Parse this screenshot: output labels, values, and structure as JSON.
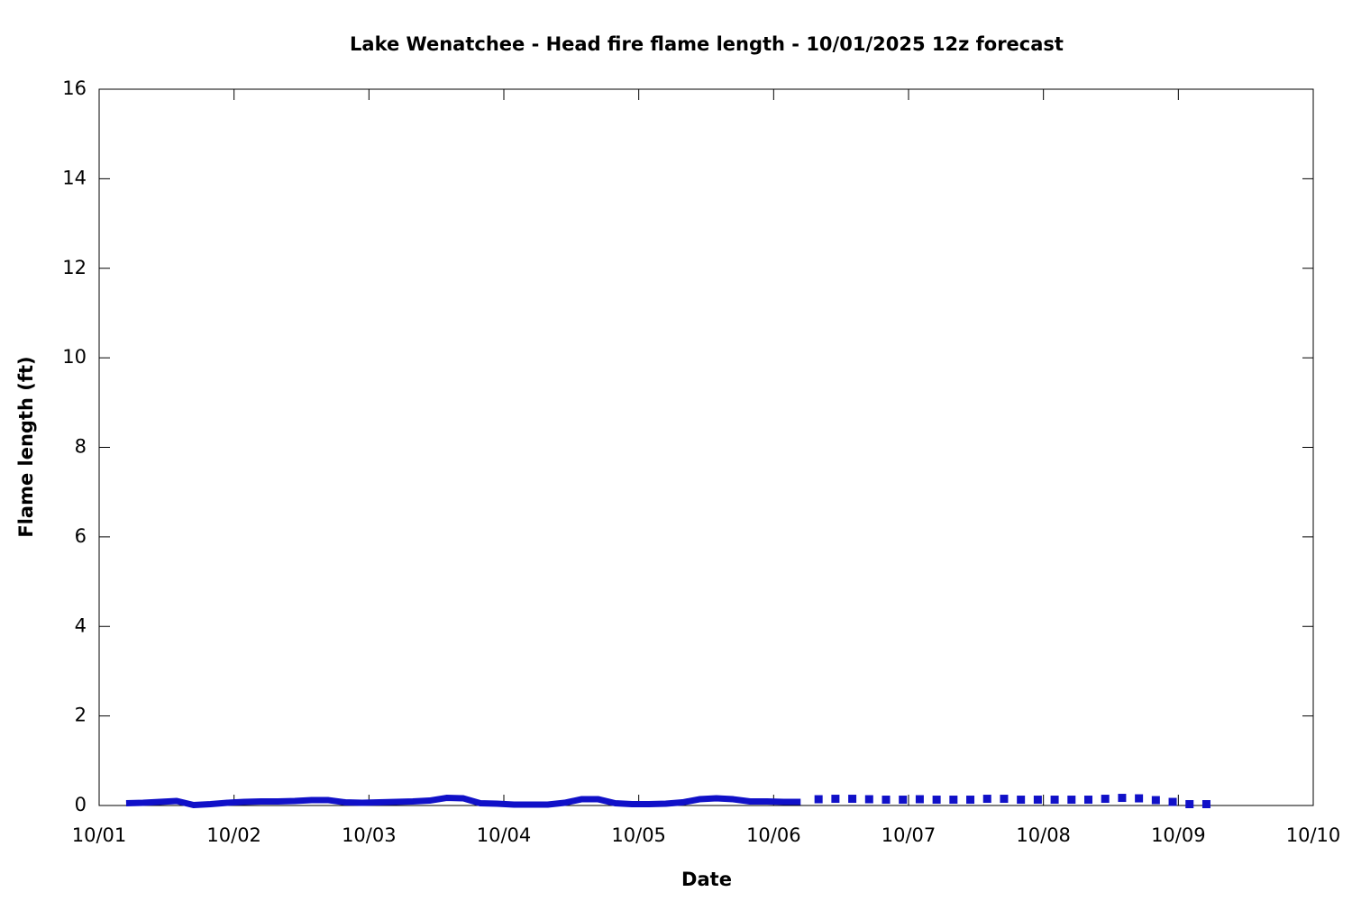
{
  "chart_data": {
    "type": "line",
    "title": "Lake Wenatchee - Head fire flame length - 10/01/2025 12z forecast",
    "x_label": "Date",
    "y_label": "Flame length (ft)",
    "xlim": [
      0,
      9
    ],
    "xticks": [
      {
        "value": 0,
        "label": "10/01"
      },
      {
        "value": 1,
        "label": "10/02"
      },
      {
        "value": 2,
        "label": "10/03"
      },
      {
        "value": 3,
        "label": "10/04"
      },
      {
        "value": 4,
        "label": "10/05"
      },
      {
        "value": 5,
        "label": "10/06"
      },
      {
        "value": 6,
        "label": "10/07"
      },
      {
        "value": 7,
        "label": "10/08"
      },
      {
        "value": 8,
        "label": "10/09"
      },
      {
        "value": 9,
        "label": "10/10"
      }
    ],
    "ylim": [
      0,
      16
    ],
    "yticks": [
      0,
      2,
      4,
      6,
      8,
      10,
      12,
      14,
      16
    ],
    "series": [
      {
        "style": "line",
        "color": "#1010c8",
        "x": [
          0.2,
          0.325,
          0.45,
          0.575,
          0.7,
          0.825,
          0.95,
          1.075,
          1.2,
          1.325,
          1.45,
          1.575,
          1.7,
          1.825,
          1.95,
          2.075,
          2.2,
          2.325,
          2.45,
          2.575,
          2.7,
          2.825,
          2.95,
          3.075,
          3.2,
          3.325,
          3.45,
          3.575,
          3.7,
          3.825,
          3.95,
          4.075,
          4.2,
          4.325,
          4.45,
          4.575,
          4.7,
          4.825,
          4.95,
          5.075,
          5.2
        ],
        "values": [
          0.05,
          0.06,
          0.08,
          0.1,
          0.01,
          0.03,
          0.06,
          0.08,
          0.09,
          0.09,
          0.1,
          0.12,
          0.12,
          0.07,
          0.06,
          0.07,
          0.08,
          0.09,
          0.11,
          0.17,
          0.16,
          0.05,
          0.04,
          0.02,
          0.02,
          0.02,
          0.06,
          0.14,
          0.14,
          0.05,
          0.03,
          0.03,
          0.04,
          0.07,
          0.14,
          0.16,
          0.14,
          0.09,
          0.09,
          0.08,
          0.08
        ]
      },
      {
        "style": "points",
        "color": "#1010c8",
        "x": [
          5.333,
          5.458,
          5.583,
          5.708,
          5.833,
          5.958,
          6.083,
          6.208,
          6.333,
          6.458,
          6.583,
          6.708,
          6.833,
          6.958,
          7.083,
          7.208,
          7.333,
          7.458,
          7.583,
          7.708,
          7.833,
          7.958,
          8.083,
          8.208
        ],
        "values": [
          0.14,
          0.15,
          0.15,
          0.14,
          0.13,
          0.13,
          0.14,
          0.13,
          0.13,
          0.13,
          0.15,
          0.15,
          0.13,
          0.13,
          0.13,
          0.13,
          0.13,
          0.15,
          0.17,
          0.16,
          0.12,
          0.08,
          0.03,
          0.03
        ]
      }
    ]
  }
}
